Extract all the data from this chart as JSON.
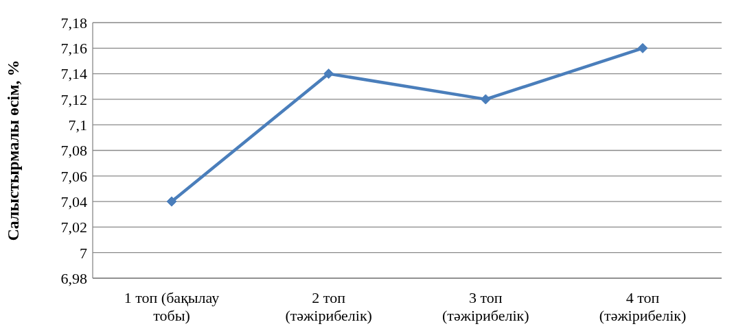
{
  "chart_data": {
    "type": "line",
    "ylabel": "Салыстырмалы өсім, %",
    "categories": [
      "1 топ (бақылау тобы)",
      "2 топ (тәжірибелік)",
      "3 топ (тәжірибелік)",
      "4 топ (тәжірибелік)"
    ],
    "series": [
      {
        "color": "#4a7ebb",
        "values": [
          7.04,
          7.14,
          7.12,
          7.16
        ]
      }
    ],
    "ylim": [
      6.98,
      7.18
    ],
    "yticks": [
      {
        "value": 6.98,
        "label": "6,98"
      },
      {
        "value": 7,
        "label": "7"
      },
      {
        "value": 7.02,
        "label": "7,02"
      },
      {
        "value": 7.04,
        "label": "7,04"
      },
      {
        "value": 7.06,
        "label": "7,06"
      },
      {
        "value": 7.08,
        "label": "7,08"
      },
      {
        "value": 7.1,
        "label": "7,1"
      },
      {
        "value": 7.12,
        "label": "7,12"
      },
      {
        "value": 7.14,
        "label": "7,14"
      },
      {
        "value": 7.16,
        "label": "7,16"
      },
      {
        "value": 7.18,
        "label": "7,18"
      }
    ],
    "grid": "y",
    "legend": false,
    "marker": "diamond",
    "line_style": "solid"
  }
}
